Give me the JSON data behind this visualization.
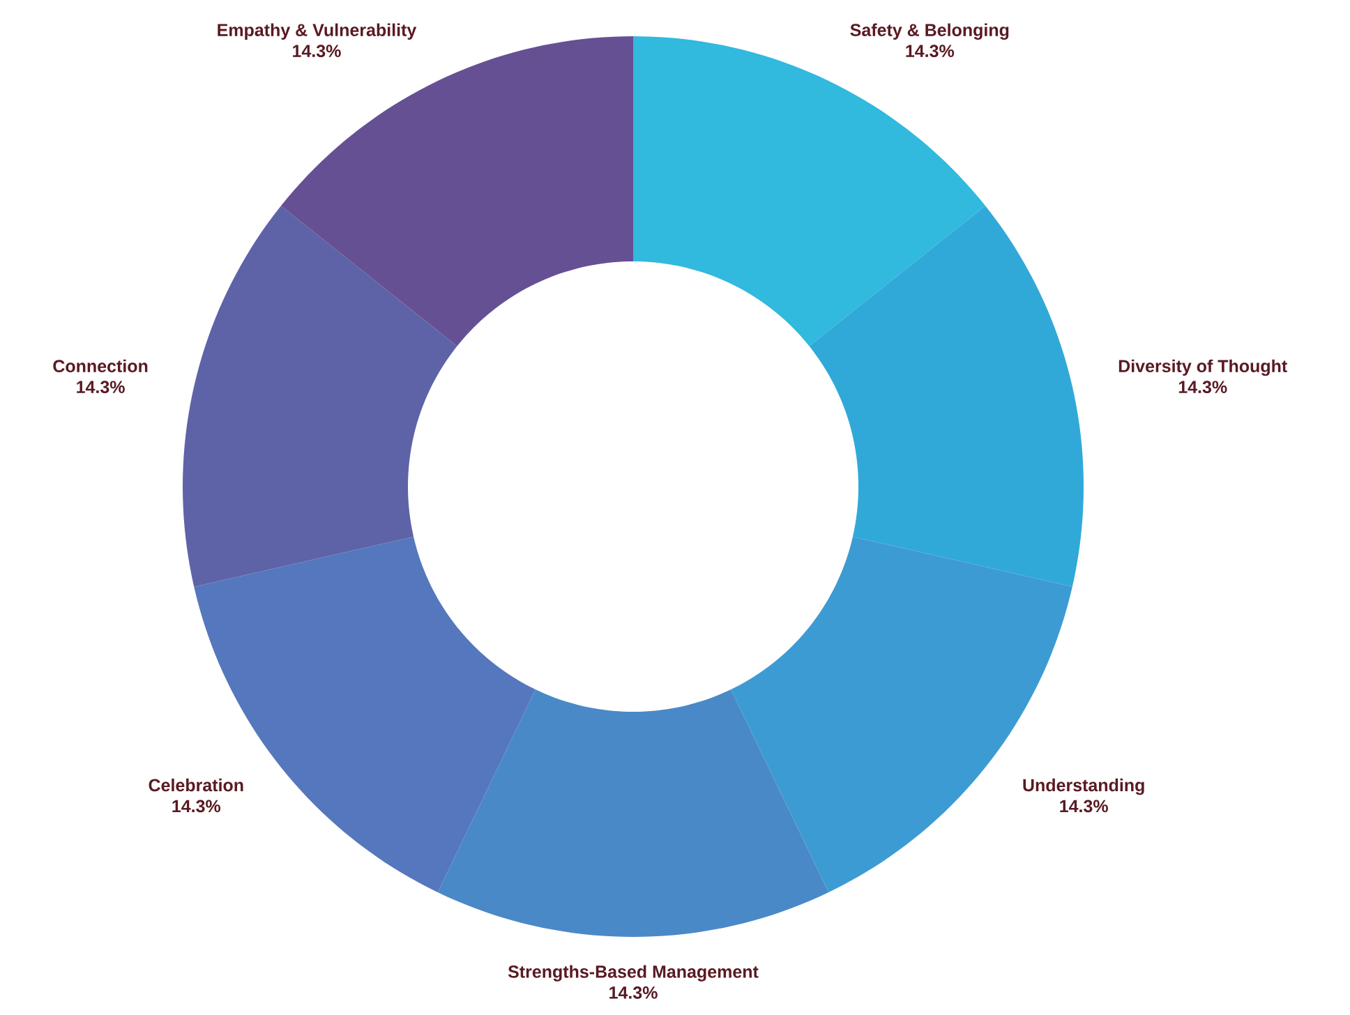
{
  "chart_data": {
    "type": "donut",
    "categories": [
      "Safety & Belonging",
      "Diversity of Thought",
      "Understanding",
      "Strengths-Based Management",
      "Celebration",
      "Connection",
      "Empathy & Vulnerability"
    ],
    "values": [
      14.3,
      14.3,
      14.3,
      14.3,
      14.3,
      14.3,
      14.3
    ],
    "value_labels": [
      "14.3%",
      "14.3%",
      "14.3%",
      "14.3%",
      "14.3%",
      "14.3%",
      "14.3%"
    ],
    "colors": [
      "#31b9de",
      "#31a9d8",
      "#3d9bd3",
      "#4a89c7",
      "#5577bd",
      "#5e63a8",
      "#665094"
    ]
  }
}
